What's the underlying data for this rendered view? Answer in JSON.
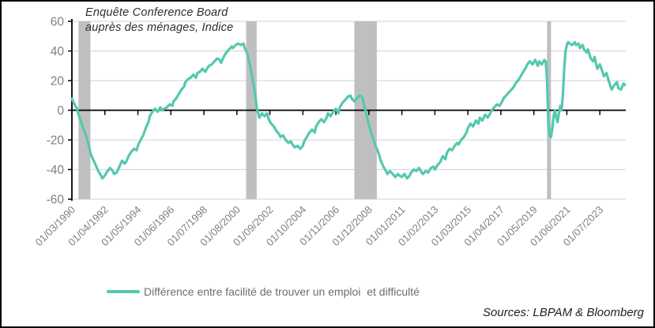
{
  "chart": {
    "title_lines": [
      "Enquête Conference Board",
      "auprès des ménages, Indice"
    ]
  },
  "legend": {
    "label": "Différence entre facilité de trouver un emploi  et difficulté"
  },
  "footer": {
    "sources": "Sources: LBPAM & Bloomberg"
  },
  "chart_data": {
    "type": "line",
    "title": "Enquête Conference Board auprès des ménages, Indice",
    "xlabel": "",
    "ylabel": "",
    "ylim": [
      -60,
      60
    ],
    "y_ticks": [
      60,
      40,
      20,
      0,
      -20,
      -40,
      -60
    ],
    "x_tick_labels": [
      "01/03/1990",
      "01/04/1992",
      "01/05/1994",
      "01/06/1996",
      "01/07/1998",
      "01/08/2000",
      "01/09/2002",
      "01/10/2004",
      "01/11/2006",
      "01/12/2008",
      "01/01/2011",
      "01/02/2013",
      "01/03/2015",
      "01/04/2017",
      "01/05/2019",
      "01/06/2021",
      "01/07/2023"
    ],
    "grid": true,
    "grid_color": "#D9D9D9",
    "axis_color": "#000000",
    "axis_label_color": "#7f7f7f",
    "band_color": "#BFBFBF",
    "legend_position": "bottom",
    "recession_bands": [
      {
        "from": "1990-08",
        "to": "1991-05"
      },
      {
        "from": "2001-03",
        "to": "2001-11"
      },
      {
        "from": "2008-01",
        "to": "2009-06"
      },
      {
        "from": "2020-03",
        "to": "2020-06"
      }
    ],
    "series": [
      {
        "name": "Différence entre facilité de trouver un emploi  et difficulté",
        "color": "#55C8AF",
        "points": [
          [
            "1990-03",
            8
          ],
          [
            "1990-05",
            4
          ],
          [
            "1990-07",
            1
          ],
          [
            "1990-08",
            -3
          ],
          [
            "1990-10",
            -8
          ],
          [
            "1990-12",
            -13
          ],
          [
            "1991-02",
            -18
          ],
          [
            "1991-04",
            -24
          ],
          [
            "1991-05",
            -29
          ],
          [
            "1991-07",
            -33
          ],
          [
            "1991-09",
            -37
          ],
          [
            "1991-11",
            -41
          ],
          [
            "1992-01",
            -44
          ],
          [
            "1992-02",
            -46
          ],
          [
            "1992-04",
            -44
          ],
          [
            "1992-06",
            -41
          ],
          [
            "1992-08",
            -39
          ],
          [
            "1992-10",
            -41
          ],
          [
            "1992-11",
            -43
          ],
          [
            "1993-01",
            -42
          ],
          [
            "1993-03",
            -38
          ],
          [
            "1993-05",
            -34
          ],
          [
            "1993-07",
            -36
          ],
          [
            "1993-08",
            -35
          ],
          [
            "1993-10",
            -31
          ],
          [
            "1993-12",
            -28
          ],
          [
            "1994-02",
            -26
          ],
          [
            "1994-04",
            -27
          ],
          [
            "1994-05",
            -24
          ],
          [
            "1994-07",
            -20
          ],
          [
            "1994-09",
            -17
          ],
          [
            "1994-11",
            -12
          ],
          [
            "1995-01",
            -8
          ],
          [
            "1995-02",
            -4
          ],
          [
            "1995-04",
            -1
          ],
          [
            "1995-06",
            1
          ],
          [
            "1995-08",
            -1
          ],
          [
            "1995-10",
            2
          ],
          [
            "1995-11",
            0
          ],
          [
            "1996-01",
            1
          ],
          [
            "1996-03",
            2
          ],
          [
            "1996-05",
            4
          ],
          [
            "1996-07",
            3
          ],
          [
            "1996-08",
            6
          ],
          [
            "1996-10",
            8
          ],
          [
            "1996-12",
            11
          ],
          [
            "1997-02",
            14
          ],
          [
            "1997-04",
            16
          ],
          [
            "1997-05",
            19
          ],
          [
            "1997-07",
            21
          ],
          [
            "1997-09",
            22
          ],
          [
            "1997-11",
            24
          ],
          [
            "1998-01",
            22
          ],
          [
            "1998-02",
            25
          ],
          [
            "1998-04",
            26
          ],
          [
            "1998-06",
            28
          ],
          [
            "1998-08",
            26
          ],
          [
            "1998-10",
            29
          ],
          [
            "1998-11",
            30
          ],
          [
            "1999-01",
            31
          ],
          [
            "1999-03",
            33
          ],
          [
            "1999-05",
            35
          ],
          [
            "1999-07",
            34
          ],
          [
            "1999-08",
            32
          ],
          [
            "1999-10",
            36
          ],
          [
            "1999-12",
            39
          ],
          [
            "2000-02",
            41
          ],
          [
            "2000-04",
            43
          ],
          [
            "2000-05",
            42
          ],
          [
            "2000-07",
            44
          ],
          [
            "2000-09",
            45
          ],
          [
            "2000-11",
            44
          ],
          [
            "2001-01",
            45
          ],
          [
            "2001-02",
            42
          ],
          [
            "2001-04",
            38
          ],
          [
            "2001-06",
            30
          ],
          [
            "2001-08",
            20
          ],
          [
            "2001-10",
            10
          ],
          [
            "2001-11",
            2
          ],
          [
            "2002-01",
            -5
          ],
          [
            "2002-03",
            -2
          ],
          [
            "2002-05",
            -4
          ],
          [
            "2002-07",
            -2
          ],
          [
            "2002-08",
            -6
          ],
          [
            "2002-10",
            -9
          ],
          [
            "2002-12",
            -11
          ],
          [
            "2003-02",
            -14
          ],
          [
            "2003-04",
            -16
          ],
          [
            "2003-05",
            -18
          ],
          [
            "2003-07",
            -17
          ],
          [
            "2003-09",
            -20
          ],
          [
            "2003-11",
            -22
          ],
          [
            "2004-01",
            -21
          ],
          [
            "2004-02",
            -23
          ],
          [
            "2004-04",
            -25
          ],
          [
            "2004-06",
            -24
          ],
          [
            "2004-08",
            -26
          ],
          [
            "2004-10",
            -24
          ],
          [
            "2004-11",
            -21
          ],
          [
            "2005-01",
            -18
          ],
          [
            "2005-03",
            -15
          ],
          [
            "2005-05",
            -13
          ],
          [
            "2005-07",
            -15
          ],
          [
            "2005-08",
            -11
          ],
          [
            "2005-10",
            -8
          ],
          [
            "2005-12",
            -6
          ],
          [
            "2006-02",
            -8
          ],
          [
            "2006-04",
            -5
          ],
          [
            "2006-05",
            -2
          ],
          [
            "2006-07",
            -4
          ],
          [
            "2006-09",
            -1
          ],
          [
            "2006-11",
            1
          ],
          [
            "2007-01",
            -2
          ],
          [
            "2007-02",
            2
          ],
          [
            "2007-04",
            5
          ],
          [
            "2007-06",
            7
          ],
          [
            "2007-08",
            9
          ],
          [
            "2007-10",
            10
          ],
          [
            "2007-11",
            8
          ],
          [
            "2008-01",
            6
          ],
          [
            "2008-03",
            8
          ],
          [
            "2008-05",
            10
          ],
          [
            "2008-07",
            9
          ],
          [
            "2008-08",
            5
          ],
          [
            "2008-10",
            -2
          ],
          [
            "2008-12",
            -10
          ],
          [
            "2009-02",
            -16
          ],
          [
            "2009-04",
            -21
          ],
          [
            "2009-05",
            -24
          ],
          [
            "2009-07",
            -28
          ],
          [
            "2009-09",
            -34
          ],
          [
            "2009-11",
            -38
          ],
          [
            "2010-01",
            -41
          ],
          [
            "2010-02",
            -43
          ],
          [
            "2010-04",
            -41
          ],
          [
            "2010-06",
            -43
          ],
          [
            "2010-08",
            -45
          ],
          [
            "2010-10",
            -43
          ],
          [
            "2010-11",
            -44
          ],
          [
            "2011-01",
            -45
          ],
          [
            "2011-03",
            -43
          ],
          [
            "2011-05",
            -46
          ],
          [
            "2011-07",
            -44
          ],
          [
            "2011-08",
            -42
          ],
          [
            "2011-10",
            -40
          ],
          [
            "2011-12",
            -41
          ],
          [
            "2012-02",
            -39
          ],
          [
            "2012-04",
            -42
          ],
          [
            "2012-05",
            -43
          ],
          [
            "2012-07",
            -41
          ],
          [
            "2012-09",
            -42
          ],
          [
            "2012-11",
            -39
          ],
          [
            "2013-01",
            -38
          ],
          [
            "2013-02",
            -40
          ],
          [
            "2013-04",
            -37
          ],
          [
            "2013-06",
            -35
          ],
          [
            "2013-08",
            -31
          ],
          [
            "2013-10",
            -33
          ],
          [
            "2013-11",
            -29
          ],
          [
            "2014-01",
            -26
          ],
          [
            "2014-03",
            -27
          ],
          [
            "2014-05",
            -24
          ],
          [
            "2014-07",
            -22
          ],
          [
            "2014-08",
            -23
          ],
          [
            "2014-10",
            -20
          ],
          [
            "2014-12",
            -18
          ],
          [
            "2015-02",
            -15
          ],
          [
            "2015-03",
            -12
          ],
          [
            "2015-05",
            -9
          ],
          [
            "2015-07",
            -11
          ],
          [
            "2015-09",
            -7
          ],
          [
            "2015-11",
            -9
          ],
          [
            "2015-12",
            -5
          ],
          [
            "2016-02",
            -7
          ],
          [
            "2016-04",
            -3
          ],
          [
            "2016-06",
            -5
          ],
          [
            "2016-08",
            -2
          ],
          [
            "2016-09",
            0
          ],
          [
            "2016-11",
            2
          ],
          [
            "2017-01",
            4
          ],
          [
            "2017-03",
            3
          ],
          [
            "2017-05",
            6
          ],
          [
            "2017-06",
            8
          ],
          [
            "2017-08",
            10
          ],
          [
            "2017-10",
            12
          ],
          [
            "2017-12",
            14
          ],
          [
            "2018-02",
            16
          ],
          [
            "2018-03",
            18
          ],
          [
            "2018-05",
            20
          ],
          [
            "2018-07",
            23
          ],
          [
            "2018-09",
            26
          ],
          [
            "2018-11",
            29
          ],
          [
            "2018-12",
            31
          ],
          [
            "2019-02",
            33
          ],
          [
            "2019-04",
            31
          ],
          [
            "2019-06",
            34
          ],
          [
            "2019-08",
            30
          ],
          [
            "2019-09",
            33
          ],
          [
            "2019-11",
            31
          ],
          [
            "2020-01",
            34
          ],
          [
            "2020-02",
            33
          ],
          [
            "2020-03",
            20
          ],
          [
            "2020-04",
            -10
          ],
          [
            "2020-05",
            -17
          ],
          [
            "2020-06",
            -18
          ],
          [
            "2020-07",
            -12
          ],
          [
            "2020-08",
            -4
          ],
          [
            "2020-09",
            0
          ],
          [
            "2020-10",
            -5
          ],
          [
            "2020-11",
            -8
          ],
          [
            "2020-12",
            -2
          ],
          [
            "2021-01",
            3
          ],
          [
            "2021-02",
            0
          ],
          [
            "2021-03",
            10
          ],
          [
            "2021-04",
            28
          ],
          [
            "2021-05",
            40
          ],
          [
            "2021-06",
            44
          ],
          [
            "2021-07",
            46
          ],
          [
            "2021-08",
            45
          ],
          [
            "2021-10",
            44
          ],
          [
            "2021-12",
            46
          ],
          [
            "2022-01",
            44
          ],
          [
            "2022-03",
            45
          ],
          [
            "2022-04",
            42
          ],
          [
            "2022-06",
            44
          ],
          [
            "2022-07",
            41
          ],
          [
            "2022-09",
            39
          ],
          [
            "2022-10",
            41
          ],
          [
            "2022-12",
            35
          ],
          [
            "2023-02",
            33
          ],
          [
            "2023-03",
            36
          ],
          [
            "2023-05",
            28
          ],
          [
            "2023-07",
            31
          ],
          [
            "2023-09",
            26
          ],
          [
            "2023-10",
            23
          ],
          [
            "2023-12",
            25
          ],
          [
            "2024-02",
            19
          ],
          [
            "2024-04",
            14
          ],
          [
            "2024-06",
            17
          ],
          [
            "2024-08",
            19
          ],
          [
            "2024-09",
            15
          ],
          [
            "2024-11",
            14
          ],
          [
            "2025-01",
            18
          ],
          [
            "2025-02",
            17
          ]
        ]
      }
    ]
  }
}
